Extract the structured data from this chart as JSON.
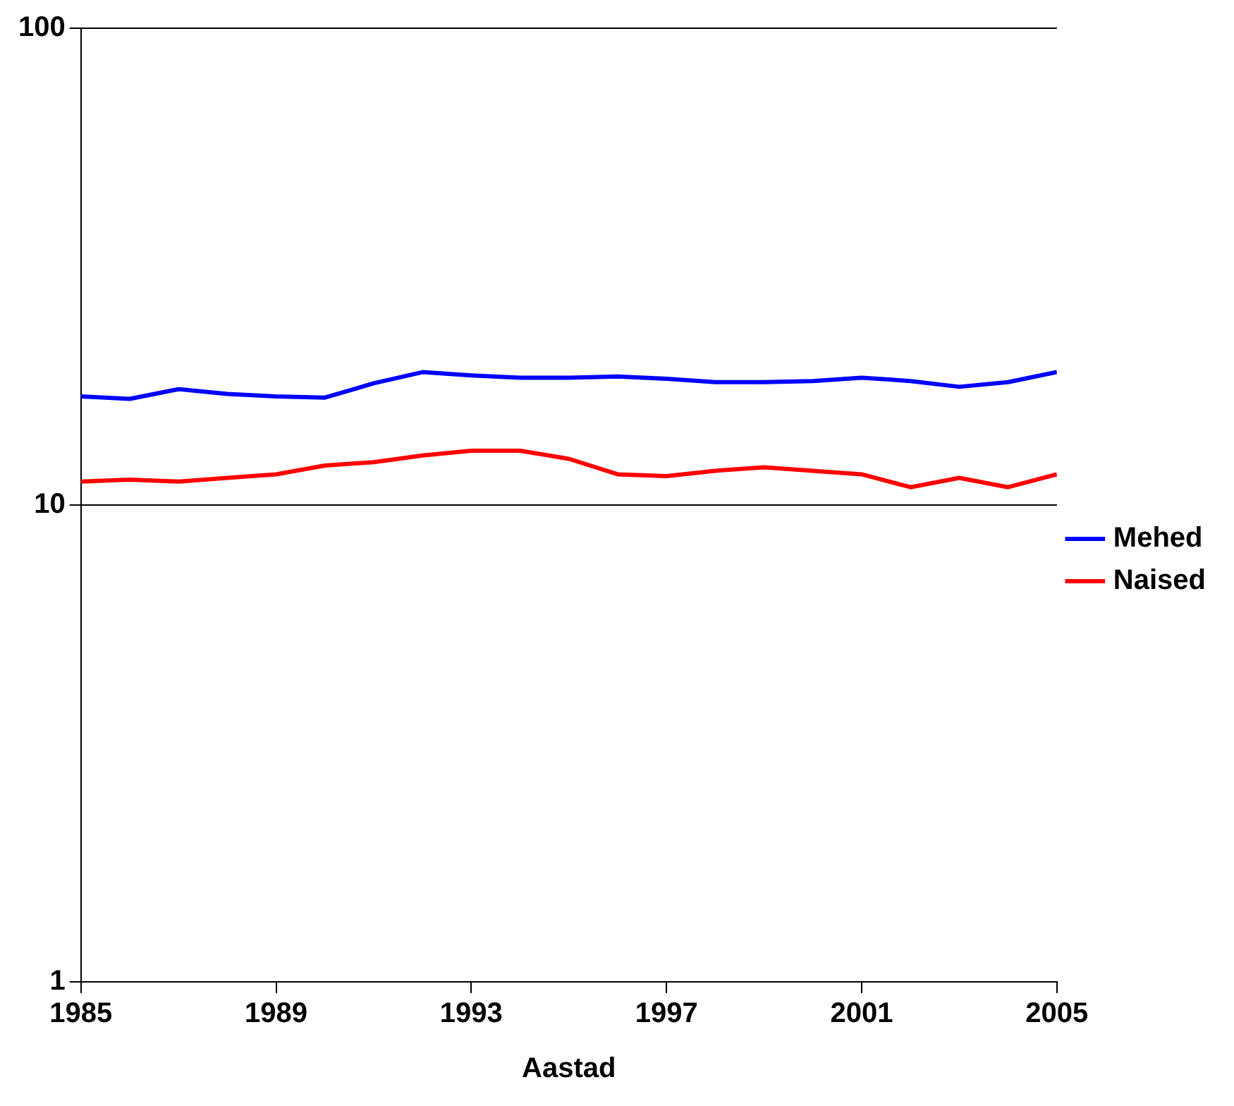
{
  "chart_data": {
    "type": "line",
    "xlabel": "Aastad",
    "x": [
      1985,
      1986,
      1987,
      1988,
      1989,
      1990,
      1991,
      1992,
      1993,
      1994,
      1995,
      1996,
      1997,
      1998,
      1999,
      2000,
      2001,
      2002,
      2003,
      2004,
      2005
    ],
    "series": [
      {
        "name": "Mehed",
        "color": "#0000ff",
        "values": [
          16.9,
          16.7,
          17.5,
          17.1,
          16.9,
          16.8,
          18.0,
          19.0,
          18.7,
          18.5,
          18.5,
          18.6,
          18.4,
          18.1,
          18.1,
          18.2,
          18.5,
          18.2,
          17.7,
          18.1,
          19.0
        ]
      },
      {
        "name": "Naised",
        "color": "#ff0000",
        "values": [
          11.2,
          11.3,
          11.2,
          11.4,
          11.6,
          12.1,
          12.3,
          12.7,
          13.0,
          13.0,
          12.5,
          11.6,
          11.5,
          11.8,
          12.0,
          11.8,
          11.6,
          10.9,
          11.4,
          10.9,
          11.6
        ]
      }
    ],
    "xlim": [
      1985,
      2005
    ],
    "xticks": [
      1985,
      1989,
      1993,
      1997,
      2001,
      2005
    ],
    "ylim": [
      1,
      100
    ],
    "yticks": [
      1,
      10,
      100
    ],
    "log": true,
    "grid": "y",
    "legend": "right",
    "marker": "none",
    "line_style": "solid"
  }
}
